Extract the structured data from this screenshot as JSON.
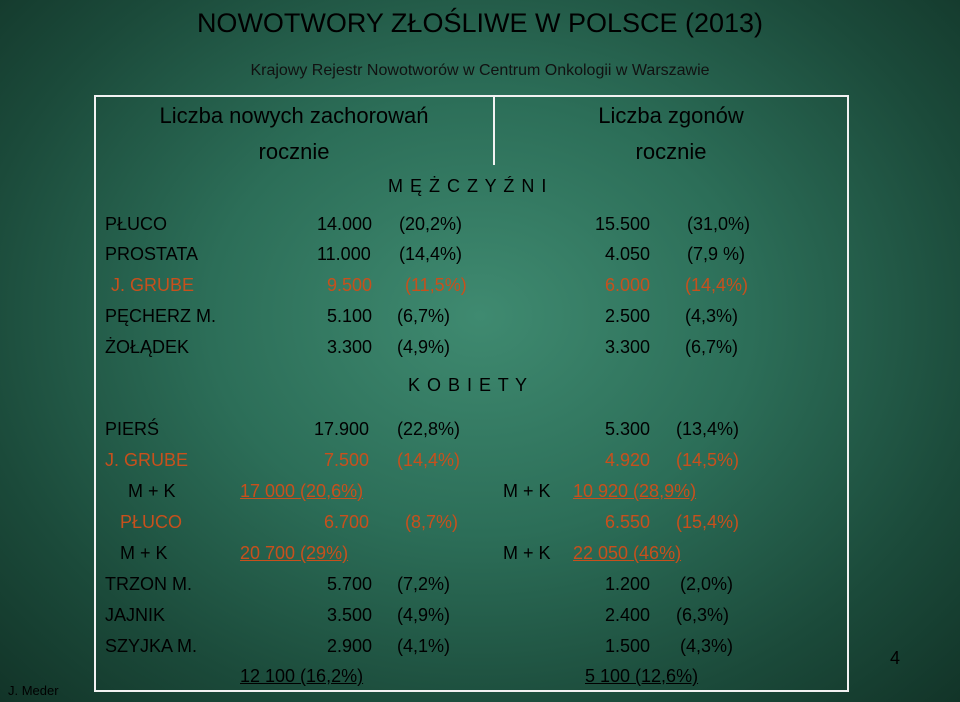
{
  "title": "NOWOTWORY ZŁOŚLIWE W POLSCE (2013)",
  "subtitle": "Krajowy Rejestr Nowotworów w Centrum Onkologii w Warszawie",
  "headers": {
    "incidence_line1": "Liczba nowych zachorowań",
    "incidence_line2": "rocznie",
    "deaths_line1": "Liczba zgonów",
    "deaths_line2": "rocznie"
  },
  "sections": {
    "men": "M Ę Ż C Z Y Ź N I",
    "women": "K O B I E T Y"
  },
  "men_rows": [
    {
      "label": "PŁUCO",
      "inc": "14.000",
      "inc_pct": "(20,2%)",
      "dth": "15.500",
      "dth_pct": "(31,0%)"
    },
    {
      "label": "PROSTATA",
      "inc": "11.000",
      "inc_pct": "(14,4%)",
      "dth": "4.050",
      "dth_pct": "(7,9 %)"
    },
    {
      "label": "J. GRUBE",
      "inc": "9.500",
      "inc_pct": "(11,5%)",
      "dth": "6.000",
      "dth_pct": "(14,4%)"
    },
    {
      "label": "PĘCHERZ M.",
      "inc": "5.100",
      "inc_pct": "(6,7%)",
      "dth": "2.500",
      "dth_pct": "(4,3%)"
    },
    {
      "label": "ŻOŁĄDEK",
      "inc": "3.300",
      "inc_pct": "(4,9%)",
      "dth": "3.300",
      "dth_pct": "(6,7%)"
    }
  ],
  "women_rows": {
    "piers": {
      "label": "PIERŚ",
      "inc": "17.900",
      "inc_pct": "(22,8%)",
      "dth": "5.300",
      "dth_pct": "(13,4%)"
    },
    "jgrube": {
      "label": "J. GRUBE",
      "inc": "7.500",
      "inc_pct": "(14,4%)",
      "dth": "4.920",
      "dth_pct": "(14,5%)"
    },
    "mk1": {
      "label": "M + K",
      "inc_total": "17 000  (20,6%)",
      "dth_label": "M + K",
      "dth_total": "10 920  (28,9%)"
    },
    "pluco": {
      "label": "PŁUCO",
      "inc": "6.700",
      "inc_pct": "(8,7%)",
      "dth": "6.550",
      "dth_pct": "(15,4%)"
    },
    "mk2": {
      "label": "M + K",
      "inc_total": "20 700   (29%)",
      "dth_label": "M + K",
      "dth_total": "22 050   (46%)"
    },
    "trzon": {
      "label": "TRZON M.",
      "inc": "5.700",
      "inc_pct": "(7,2%)",
      "dth": "1.200",
      "dth_pct": "(2,0%)"
    },
    "jajnik": {
      "label": "JAJNIK",
      "inc": "3.500",
      "inc_pct": "(4,9%)",
      "dth": "2.400",
      "dth_pct": "(6,3%)"
    },
    "szyjka": {
      "label": "SZYJKA M.",
      "inc": "2.900",
      "inc_pct": "(4,1%)",
      "dth": "1.500",
      "dth_pct": "(4,3%)"
    },
    "totals": {
      "inc_total": "12 100   (16,2%)",
      "dth_total": "5 100   (12,6%)"
    }
  },
  "colors": {
    "accent_orange": "#c8501c",
    "text": "#000000",
    "border": "#f2f2f2"
  },
  "author": "J. Meder",
  "page_number": "4"
}
